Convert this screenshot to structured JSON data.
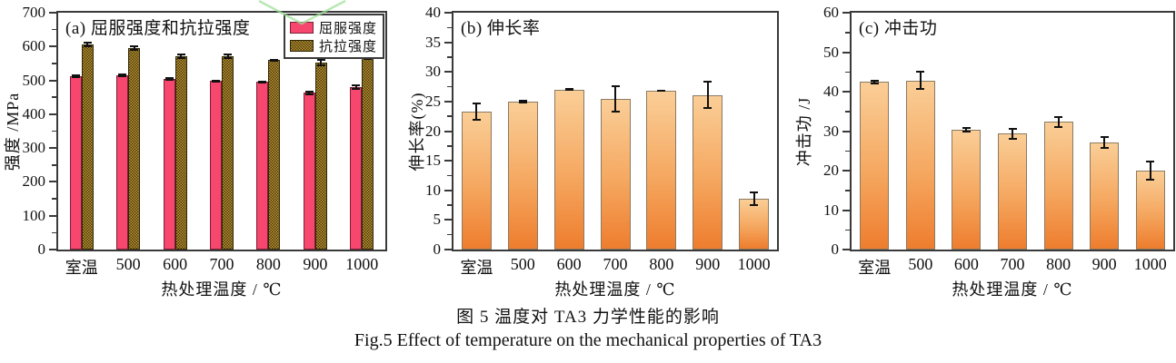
{
  "figure": {
    "caption_line1": "图 5  温度对 TA3 力学性能的影响",
    "caption_line2": "Fig.5  Effect of temperature on the mechanical properties of TA3"
  },
  "colors": {
    "yield_bar_pink": "#F7476F",
    "tensile_bar_gold": "#BD9530",
    "tensile_pattern_dark": "#4A3A10",
    "orange_gradient_top": "#FACE97",
    "orange_gradient_bottom": "#EE7D2E",
    "axis_frame": "#3A3A3A",
    "error_bar": "#111111",
    "watermark_green": "#9FE09A"
  },
  "chart_data": [
    {
      "type": "bar",
      "panel_label": "(a) 屈服强度和抗拉强度",
      "xlabel": "热处理温度 / ℃",
      "ylabel": "强度 /MPa",
      "ylim": [
        0,
        700
      ],
      "ytick_step": 100,
      "grid": false,
      "legend_position": "top-right",
      "categories": [
        "室温",
        "500",
        "600",
        "700",
        "800",
        "900",
        "1000"
      ],
      "series": [
        {
          "name": "屈服强度",
          "key": "yield-strength",
          "style": "pink",
          "values": [
            512,
            515,
            505,
            498,
            496,
            463,
            479
          ],
          "errors": [
            6,
            6,
            5,
            4,
            4,
            6,
            8
          ]
        },
        {
          "name": "抗拉强度",
          "key": "tensile-strength",
          "style": "checker",
          "values": [
            605,
            595,
            570,
            572,
            560,
            552,
            565
          ],
          "errors": [
            8,
            8,
            8,
            8,
            4,
            10,
            4
          ]
        }
      ]
    },
    {
      "type": "bar",
      "panel_label": "(b) 伸长率",
      "xlabel": "热处理温度 / ℃",
      "ylabel": "伸长率(%)",
      "ylim": [
        0,
        40
      ],
      "ytick_step": 5,
      "grid": false,
      "legend_position": "none",
      "categories": [
        "室温",
        "500",
        "600",
        "700",
        "800",
        "900",
        "1000"
      ],
      "series": [
        {
          "name": "伸长率",
          "key": "elongation",
          "style": "orange",
          "values": [
            23.3,
            25.0,
            27.0,
            25.4,
            26.8,
            26.1,
            8.6
          ],
          "errors": [
            1.5,
            0.3,
            0.25,
            2.3,
            0.2,
            2.4,
            1.2
          ]
        }
      ]
    },
    {
      "type": "bar",
      "panel_label": "(c) 冲击功",
      "xlabel": "热处理温度 / ℃",
      "ylabel": "冲击功 /J",
      "ylim": [
        0,
        60
      ],
      "ytick_step": 10,
      "grid": false,
      "legend_position": "none",
      "categories": [
        "室温",
        "500",
        "600",
        "700",
        "800",
        "900",
        "1000"
      ],
      "series": [
        {
          "name": "冲击功",
          "key": "impact-energy",
          "style": "orange",
          "values": [
            42.5,
            42.8,
            30.4,
            29.4,
            32.4,
            27.1,
            20.0
          ],
          "errors": [
            0.6,
            2.4,
            0.7,
            1.5,
            1.5,
            1.6,
            2.6
          ]
        }
      ]
    }
  ]
}
